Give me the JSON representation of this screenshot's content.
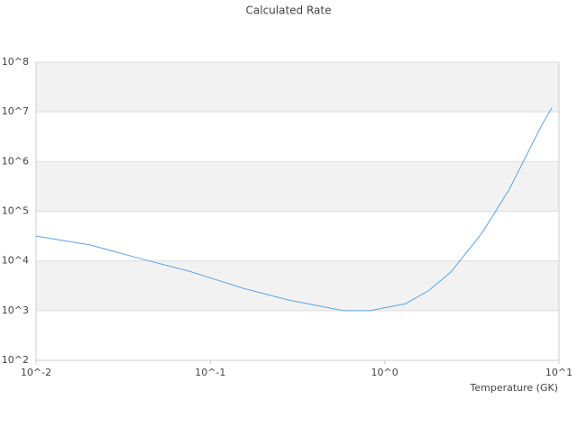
{
  "chart_data": {
    "type": "line",
    "title": "Calculated Rate",
    "x_label": "Temperature (GK)",
    "log_x": true,
    "log_y": true,
    "grid": true,
    "xlim": [
      0.01,
      10
    ],
    "ylim": [
      100,
      100000000
    ],
    "xticks": [
      {
        "value": 0.01,
        "label": "10^-2"
      },
      {
        "value": 0.1,
        "label": "10^-1"
      },
      {
        "value": 1,
        "label": "10^0"
      },
      {
        "value": 10,
        "label": "10^1"
      }
    ],
    "yticks": [
      {
        "value": 100,
        "label": "10^2"
      },
      {
        "value": 1000,
        "label": "10^3"
      },
      {
        "value": 10000,
        "label": "10^4"
      },
      {
        "value": 100000,
        "label": "10^5"
      },
      {
        "value": 1000000,
        "label": "10^6"
      },
      {
        "value": 10000000,
        "label": "10^7"
      },
      {
        "value": 100000000,
        "label": "10^8"
      }
    ],
    "x": [
      0.01,
      0.0204,
      0.0394,
      0.0759,
      0.155,
      0.28,
      0.58,
      0.82,
      1.32,
      1.78,
      2.4,
      3.63,
      5.2,
      7.9,
      9.1
    ],
    "series": [
      {
        "color": "#5ca3e6",
        "values": [
          31600,
          21000,
          11200,
          6200,
          2800,
          1640,
          1000,
          1000,
          1380,
          2500,
          6000,
          37000,
          280000,
          5100000,
          12000000
        ]
      }
    ]
  }
}
